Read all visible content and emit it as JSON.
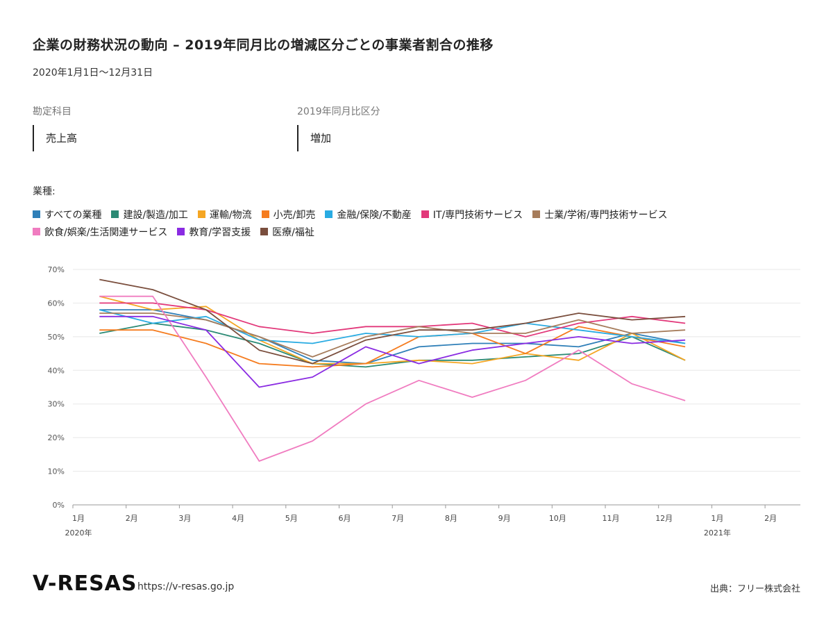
{
  "header": {
    "title": "企業の財務状況の動向 – 2019年同月比の増減区分ごとの事業者割合の推移",
    "period": "2020年1月1日〜12月31日"
  },
  "filters": {
    "account_label": "勘定科目",
    "account_value": "売上高",
    "compare_label": "2019年同月比区分",
    "compare_value": "増加"
  },
  "legend_title": "業種:",
  "footer": {
    "brand": "V-RESAS",
    "url": "https://v-resas.go.jp",
    "source": "出典：フリー株式会社"
  },
  "chart_data": {
    "type": "line",
    "title": "",
    "xlabel": "",
    "ylabel": "",
    "ylim": [
      0,
      70
    ],
    "yticks": [
      0,
      10,
      20,
      30,
      40,
      50,
      60,
      70
    ],
    "ytick_labels": [
      "0%",
      "10%",
      "20%",
      "30%",
      "40%",
      "50%",
      "60%",
      "70%"
    ],
    "grid": true,
    "legend_position": "top",
    "x_ticks": [
      {
        "label": "1月",
        "year": "2020年"
      },
      {
        "label": "2月",
        "year": ""
      },
      {
        "label": "3月",
        "year": ""
      },
      {
        "label": "4月",
        "year": ""
      },
      {
        "label": "5月",
        "year": ""
      },
      {
        "label": "6月",
        "year": ""
      },
      {
        "label": "7月",
        "year": ""
      },
      {
        "label": "8月",
        "year": ""
      },
      {
        "label": "9月",
        "year": ""
      },
      {
        "label": "10月",
        "year": ""
      },
      {
        "label": "11月",
        "year": ""
      },
      {
        "label": "12月",
        "year": ""
      },
      {
        "label": "1月",
        "year": "2021年"
      },
      {
        "label": "2月",
        "year": ""
      }
    ],
    "x": [
      "2020-01",
      "2020-02",
      "2020-03",
      "2020-04",
      "2020-05",
      "2020-06",
      "2020-07",
      "2020-08",
      "2020-09",
      "2020-10",
      "2020-11",
      "2020-12"
    ],
    "series": [
      {
        "name": "すべての業種",
        "color": "#2f7fb8",
        "values": [
          58,
          58,
          55,
          50,
          43,
          42,
          47,
          48,
          48,
          47,
          51,
          48
        ]
      },
      {
        "name": "建設/製造/加工",
        "color": "#2b8a74",
        "values": [
          51,
          54,
          52,
          48,
          42,
          41,
          43,
          43,
          44,
          45,
          50,
          43
        ]
      },
      {
        "name": "運輸/物流",
        "color": "#f5a623",
        "values": [
          62,
          58,
          59,
          49,
          42,
          42,
          43,
          42,
          45,
          43,
          51,
          43
        ]
      },
      {
        "name": "小売/卸売",
        "color": "#f57c1f",
        "values": [
          52,
          52,
          48,
          42,
          41,
          42,
          50,
          51,
          45,
          53,
          50,
          47
        ]
      },
      {
        "name": "金融/保険/不動産",
        "color": "#29abe2",
        "values": [
          58,
          54,
          56,
          49,
          48,
          51,
          50,
          51,
          54,
          52,
          50,
          48
        ]
      },
      {
        "name": "IT/専門技術サービス",
        "color": "#e2387a",
        "values": [
          60,
          60,
          58,
          53,
          51,
          53,
          53,
          54,
          50,
          54,
          56,
          54
        ]
      },
      {
        "name": "士業/学術/専門技術サービス",
        "color": "#a67c5b",
        "values": [
          57,
          57,
          55,
          50,
          44,
          50,
          53,
          51,
          51,
          55,
          51,
          52
        ]
      },
      {
        "name": "飲食/娯楽/生活関連サービス",
        "color": "#f07cc0",
        "values": [
          62,
          62,
          38,
          13,
          19,
          30,
          37,
          32,
          37,
          46,
          36,
          31
        ]
      },
      {
        "name": "教育/学習支援",
        "color": "#8a2be2",
        "values": [
          56,
          56,
          52,
          35,
          38,
          47,
          42,
          46,
          48,
          50,
          48,
          49
        ]
      },
      {
        "name": "医療/福祉",
        "color": "#7a4e3d",
        "values": [
          67,
          64,
          58,
          46,
          42,
          49,
          52,
          52,
          54,
          57,
          55,
          56
        ]
      }
    ]
  }
}
